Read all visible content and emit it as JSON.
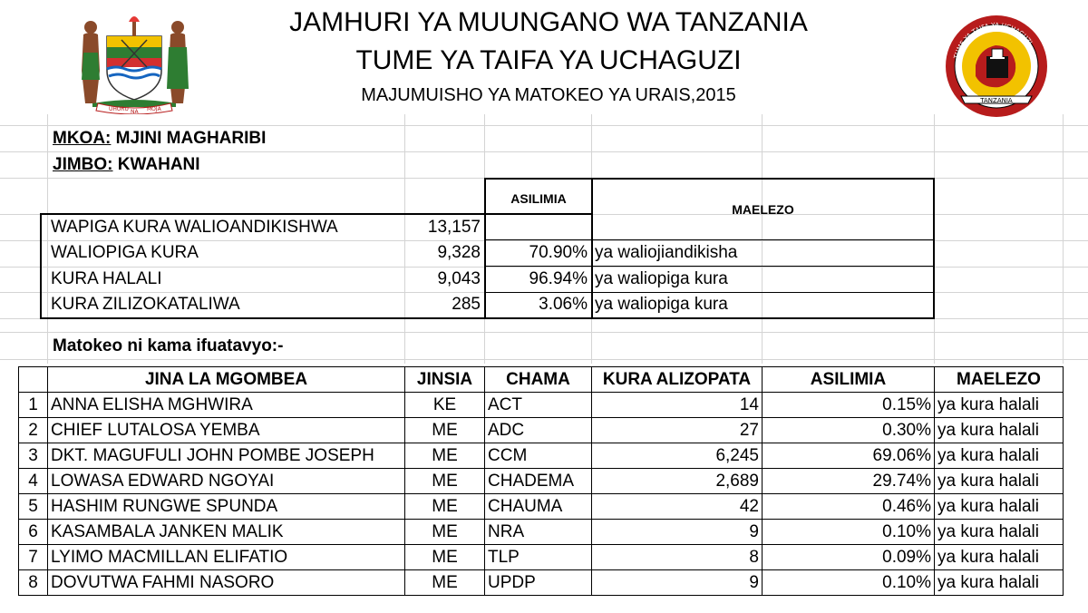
{
  "header": {
    "line1": "JAMHURI YA MUUNGANO WA TANZANIA",
    "line2": "TUME YA TAIFA YA UCHAGUZI",
    "line3": "MAJUMUISHO YA MATOKEO YA URAIS,2015"
  },
  "logos": {
    "left": {
      "name": "coat-of-arms-icon",
      "motto_left": "UHURU",
      "motto_mid": "NA",
      "motto_right": "MOJA"
    },
    "right": {
      "name": "nec-seal-icon",
      "ring_text": "TUME YA TAIFA YA UCHAGUZI",
      "banner": "TANZANIA"
    }
  },
  "location": {
    "mkoa_label": "MKOA:",
    "mkoa_value": "MJINI MAGHARIBI",
    "jimbo_label": "JIMBO:",
    "jimbo_value": "KWAHANI"
  },
  "summary": {
    "asilimia_header": "ASILIMIA",
    "maelezo_header": "MAELEZO",
    "rows": [
      {
        "label": "WAPIGA KURA WALIOANDIKISHWA",
        "value": "13,157",
        "pct": "",
        "note": ""
      },
      {
        "label": "WALIOPIGA KURA",
        "value": "9,328",
        "pct": "70.90%",
        "note": "ya waliojiandikisha"
      },
      {
        "label": "KURA HALALI",
        "value": "9,043",
        "pct": "96.94%",
        "note": "ya waliopiga kura"
      },
      {
        "label": "KURA ZILIZOKATALIWA",
        "value": "285",
        "pct": "3.06%",
        "note": "ya waliopiga kura"
      }
    ]
  },
  "intro": "Matokeo ni kama ifuatavyo:-",
  "results": {
    "headers": [
      "",
      "JINA LA MGOMBEA",
      "JINSIA",
      "CHAMA",
      "KURA ALIZOPATA",
      "ASILIMIA",
      "MAELEZO"
    ],
    "rows": [
      {
        "n": "1",
        "name": "ANNA ELISHA MGHWIRA",
        "gender": "KE",
        "party": "ACT",
        "votes": "14",
        "pct": "0.15%",
        "note": "ya kura halali"
      },
      {
        "n": "2",
        "name": "CHIEF LUTALOSA YEMBA",
        "gender": "ME",
        "party": "ADC",
        "votes": "27",
        "pct": "0.30%",
        "note": "ya kura halali"
      },
      {
        "n": "3",
        "name": "DKT. MAGUFULI JOHN POMBE JOSEPH",
        "gender": "ME",
        "party": "CCM",
        "votes": "6,245",
        "pct": "69.06%",
        "note": "ya kura halali"
      },
      {
        "n": "4",
        "name": "LOWASA EDWARD NGOYAI",
        "gender": "ME",
        "party": "CHADEMA",
        "votes": "2,689",
        "pct": "29.74%",
        "note": "ya kura halali"
      },
      {
        "n": "5",
        "name": "HASHIM RUNGWE SPUNDA",
        "gender": "ME",
        "party": "CHAUMA",
        "votes": "42",
        "pct": "0.46%",
        "note": "ya kura halali"
      },
      {
        "n": "6",
        "name": "KASAMBALA JANKEN MALIK",
        "gender": "ME",
        "party": "NRA",
        "votes": "9",
        "pct": "0.10%",
        "note": "ya kura halali"
      },
      {
        "n": "7",
        "name": "LYIMO MACMILLAN ELIFATIO",
        "gender": "ME",
        "party": "TLP",
        "votes": "8",
        "pct": "0.09%",
        "note": "ya kura halali"
      },
      {
        "n": "8",
        "name": "DOVUTWA FAHMI NASORO",
        "gender": "ME",
        "party": "UPDP",
        "votes": "9",
        "pct": "0.10%",
        "note": "ya kura halali"
      }
    ]
  }
}
